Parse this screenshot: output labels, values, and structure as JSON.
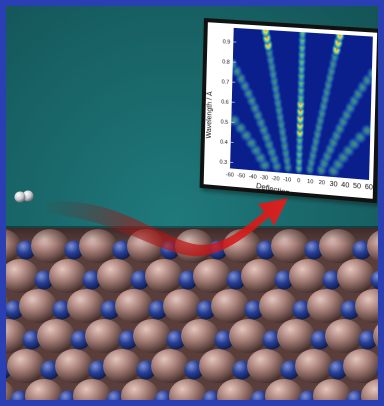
{
  "inset": {
    "xlabel": "Deflection angle / deg.",
    "ylabel": "Wavelength / Å",
    "x_ticks": [
      "-60",
      "-50",
      "-40",
      "-30",
      "-20",
      "-10",
      "0",
      "10",
      "20",
      "30",
      "40",
      "50",
      "60"
    ],
    "y_ticks": [
      "0.3",
      "0.4",
      "0.5",
      "0.6",
      "0.7",
      "0.8",
      "0.9"
    ],
    "colors": {
      "background": "#0a1e8c",
      "low": "#1f49c8",
      "mid": "#33c0a0",
      "high": "#f0e040",
      "peak": "#e83a1a"
    }
  },
  "scene": {
    "background_color": "#1b6a6e",
    "surface_light": "#b28d86",
    "surface_dark": "#5a3e3c",
    "anion_color": "#223a8c",
    "arrow_color": "#c41212",
    "projectile_color": "#e8e8ea",
    "frame_color": "#2a3fb4"
  }
}
